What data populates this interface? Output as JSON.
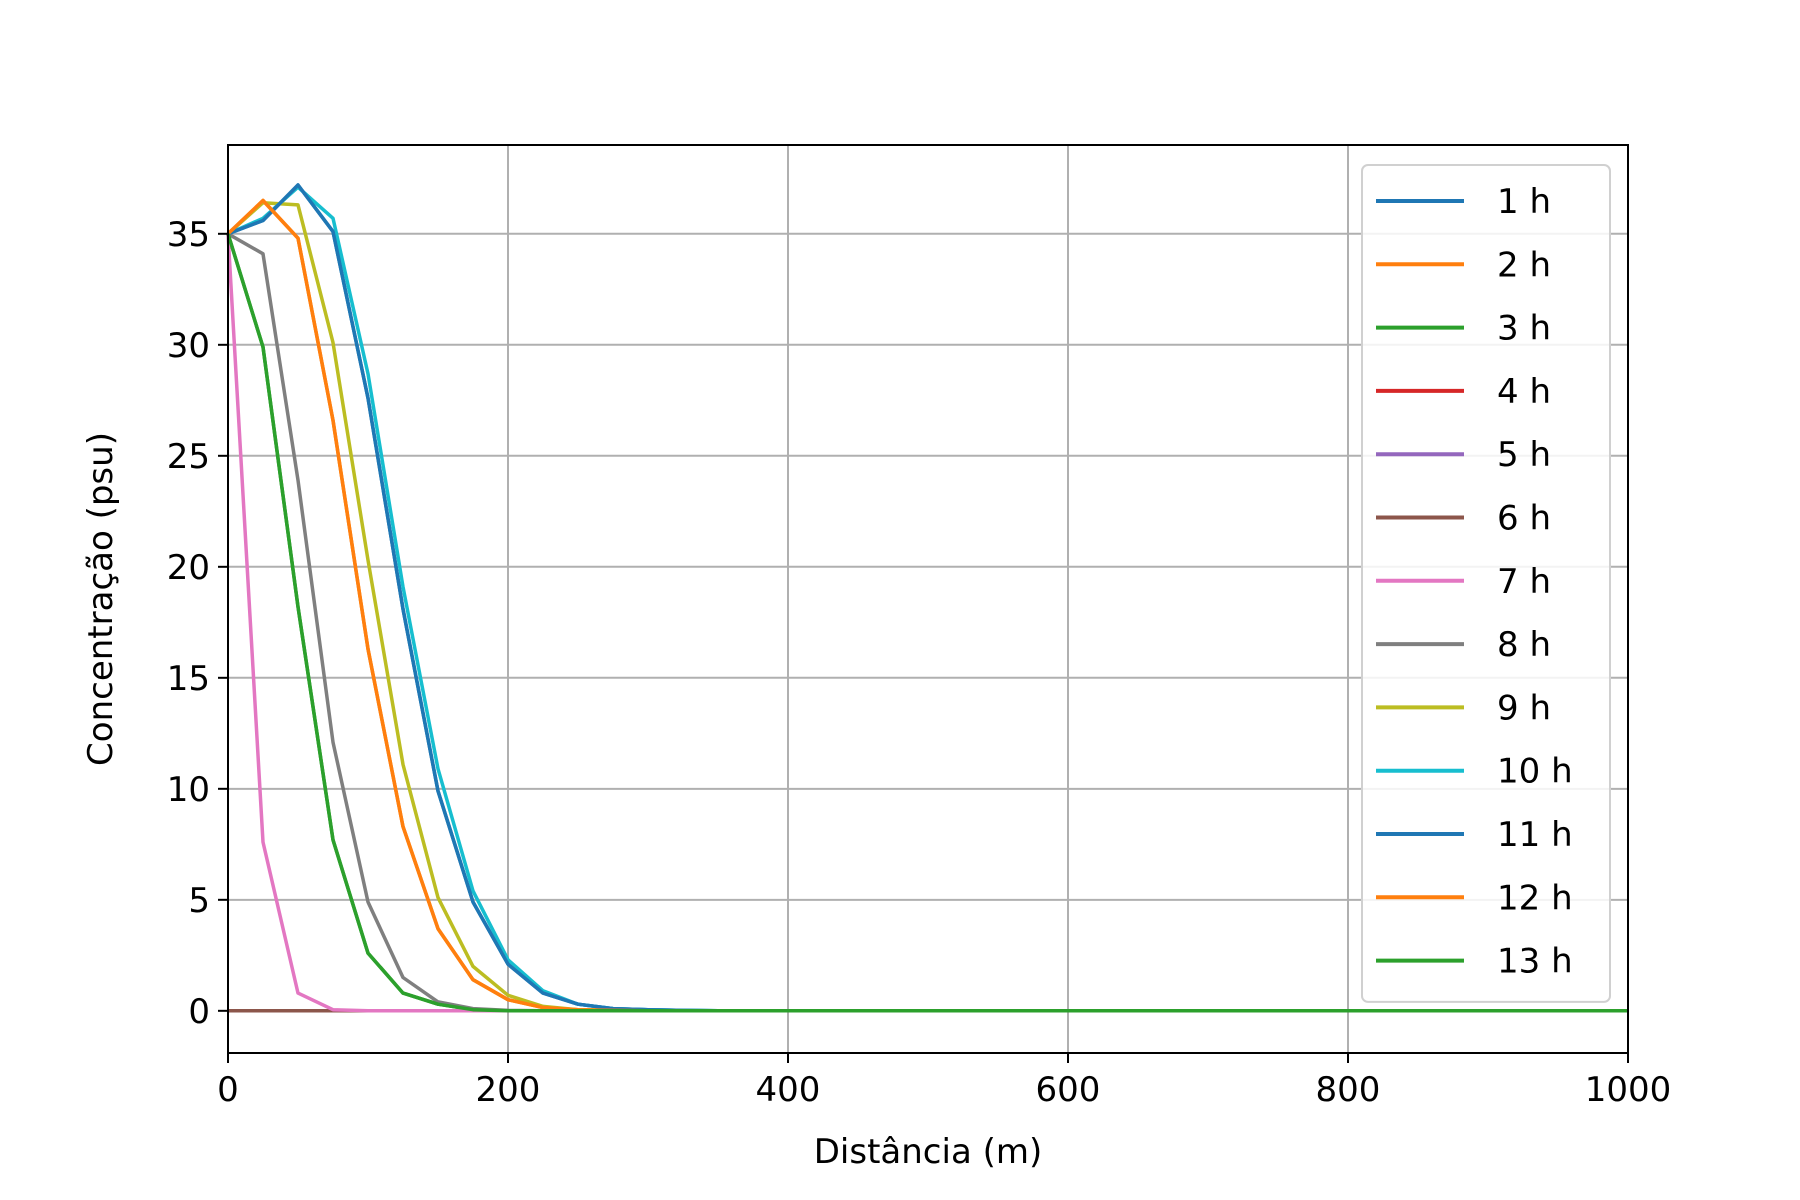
{
  "chart_data": {
    "type": "line",
    "title": "",
    "xlabel": "Distância (m)",
    "ylabel": "Concentração (psu)",
    "xlim": [
      0,
      1000
    ],
    "ylim": [
      -1.9,
      39
    ],
    "x_ticks": [
      0,
      200,
      400,
      600,
      800,
      1000
    ],
    "x_tick_labels": [
      "0",
      "200",
      "400",
      "600",
      "800",
      "1000"
    ],
    "y_ticks": [
      0,
      5,
      10,
      15,
      20,
      25,
      30,
      35
    ],
    "y_tick_labels": [
      "0",
      "5",
      "10",
      "15",
      "20",
      "25",
      "30",
      "35"
    ],
    "grid": true,
    "legend_position": "top-right",
    "x": [
      0,
      25,
      50,
      75,
      100,
      125,
      150,
      175,
      200,
      225,
      250,
      275,
      300,
      325,
      350,
      400,
      500,
      600,
      700,
      800,
      900,
      1000
    ],
    "series": [
      {
        "name": "1 h",
        "color": "#1f77b4",
        "values": [
          35,
          35.6,
          37.2,
          35.1,
          27.6,
          18.1,
          9.9,
          4.9,
          2.1,
          0.8,
          0.3,
          0.1,
          0.05,
          0.02,
          0,
          0,
          0,
          0,
          0,
          0,
          0,
          0
        ]
      },
      {
        "name": "2 h",
        "color": "#ff7f0e",
        "values": [
          35,
          36.5,
          34.8,
          26.6,
          16.3,
          8.3,
          3.7,
          1.4,
          0.5,
          0.15,
          0.05,
          0.02,
          0,
          0,
          0,
          0,
          0,
          0,
          0,
          0,
          0,
          0
        ]
      },
      {
        "name": "3 h",
        "color": "#2ca02c",
        "values": [
          35,
          29.9,
          18.2,
          7.7,
          2.6,
          0.8,
          0.3,
          0.05,
          0,
          0,
          0,
          0,
          0,
          0,
          0,
          0,
          0,
          0,
          0,
          0,
          0,
          0
        ]
      },
      {
        "name": "4 h",
        "color": "#d62728",
        "values": [
          0,
          0,
          0,
          0,
          0,
          0,
          0,
          0,
          0,
          0,
          0,
          0,
          0,
          0,
          0,
          0,
          0,
          0,
          0,
          0,
          0,
          0
        ]
      },
      {
        "name": "5 h",
        "color": "#9467bd",
        "values": [
          0,
          0,
          0,
          0,
          0,
          0,
          0,
          0,
          0,
          0,
          0,
          0,
          0,
          0,
          0,
          0,
          0,
          0,
          0,
          0,
          0,
          0
        ]
      },
      {
        "name": "6 h",
        "color": "#8c564b",
        "values": [
          0,
          0,
          0,
          0,
          0,
          0,
          0,
          0,
          0,
          0,
          0,
          0,
          0,
          0,
          0,
          0,
          0,
          0,
          0,
          0,
          0,
          0
        ]
      },
      {
        "name": "7 h",
        "color": "#e377c2",
        "values": [
          35,
          7.6,
          0.8,
          0.05,
          0,
          0,
          0,
          0,
          0,
          0,
          0,
          0,
          0,
          0,
          0,
          0,
          0,
          0,
          0,
          0,
          0,
          0
        ]
      },
      {
        "name": "8 h",
        "color": "#7f7f7f",
        "values": [
          35,
          34.1,
          23.9,
          12.1,
          4.9,
          1.5,
          0.4,
          0.1,
          0.02,
          0,
          0,
          0,
          0,
          0,
          0,
          0,
          0,
          0,
          0,
          0,
          0,
          0
        ]
      },
      {
        "name": "9 h",
        "color": "#bcbd22",
        "values": [
          35,
          36.4,
          36.3,
          30.1,
          20.3,
          11.1,
          5.1,
          2.0,
          0.7,
          0.2,
          0.05,
          0.02,
          0,
          0,
          0,
          0,
          0,
          0,
          0,
          0,
          0,
          0
        ]
      },
      {
        "name": "10 h",
        "color": "#17becf",
        "values": [
          35,
          35.7,
          37.1,
          35.7,
          28.7,
          19.1,
          10.9,
          5.4,
          2.3,
          0.9,
          0.3,
          0.1,
          0.05,
          0.02,
          0,
          0,
          0,
          0,
          0,
          0,
          0,
          0
        ]
      },
      {
        "name": "11 h",
        "color": "#1f77b4",
        "values": [
          35,
          35.6,
          37.2,
          35.1,
          27.6,
          18.1,
          9.9,
          4.9,
          2.1,
          0.8,
          0.3,
          0.1,
          0.05,
          0.02,
          0,
          0,
          0,
          0,
          0,
          0,
          0,
          0
        ]
      },
      {
        "name": "12 h",
        "color": "#ff7f0e",
        "values": [
          35,
          36.5,
          34.8,
          26.6,
          16.3,
          8.3,
          3.7,
          1.4,
          0.5,
          0.15,
          0.05,
          0.02,
          0,
          0,
          0,
          0,
          0,
          0,
          0,
          0,
          0,
          0
        ]
      },
      {
        "name": "13 h",
        "color": "#2ca02c",
        "values": [
          35,
          29.9,
          18.2,
          7.7,
          2.6,
          0.8,
          0.3,
          0.05,
          0,
          0,
          0,
          0,
          0,
          0,
          0,
          0,
          0,
          0,
          0,
          0,
          0,
          0
        ]
      }
    ]
  }
}
